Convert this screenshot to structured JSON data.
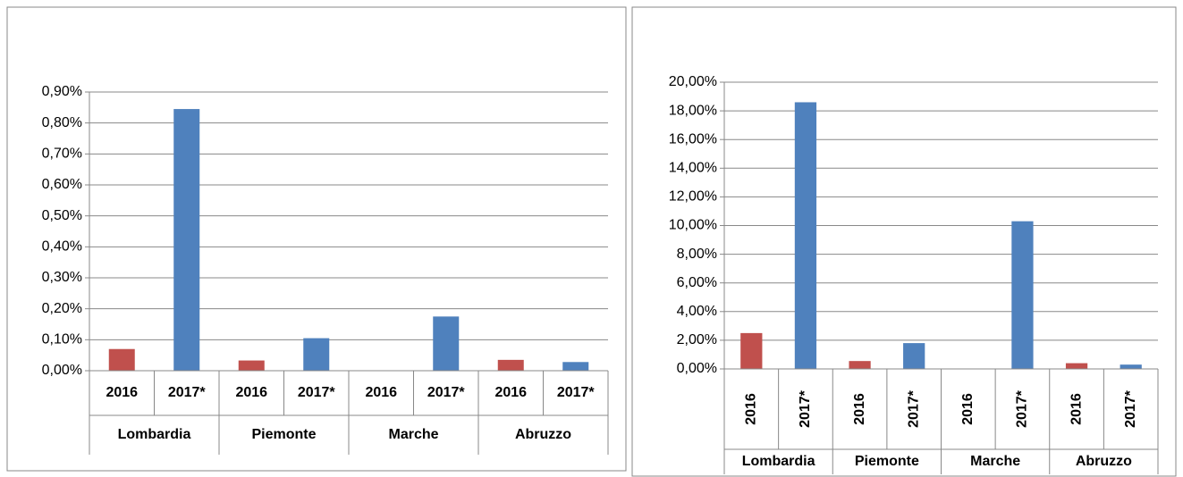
{
  "chart_data": [
    {
      "type": "bar",
      "categories": [
        "Lombardia",
        "Piemonte",
        "Marche",
        "Abruzzo"
      ],
      "series": [
        {
          "name": "2016",
          "color": "#c0504d",
          "values": [
            0.07,
            0.033,
            0,
            0.035
          ]
        },
        {
          "name": "2017*",
          "color": "#4f81bd",
          "values": [
            0.845,
            0.105,
            0.175,
            0.028
          ]
        }
      ],
      "ylim": [
        0,
        0.9
      ],
      "yticks": [
        {
          "value": 0,
          "label": "0,00%"
        },
        {
          "value": 0.1,
          "label": "0,10%"
        },
        {
          "value": 0.2,
          "label": "0,20%"
        },
        {
          "value": 0.3,
          "label": "0,30%"
        },
        {
          "value": 0.4,
          "label": "0,40%"
        },
        {
          "value": 0.5,
          "label": "0,50%"
        },
        {
          "value": 0.6,
          "label": "0,60%"
        },
        {
          "value": 0.7,
          "label": "0,70%"
        },
        {
          "value": 0.8,
          "label": "0,80%"
        },
        {
          "value": 0.9,
          "label": "0,90%"
        }
      ],
      "grid": true
    },
    {
      "type": "bar",
      "categories": [
        "Lombardia",
        "Piemonte",
        "Marche",
        "Abruzzo"
      ],
      "series": [
        {
          "name": "2016",
          "color": "#c0504d",
          "values": [
            2.5,
            0.55,
            0,
            0.4
          ]
        },
        {
          "name": "2017*",
          "color": "#4f81bd",
          "values": [
            18.6,
            1.8,
            10.3,
            0.3
          ]
        }
      ],
      "ylim": [
        0,
        20
      ],
      "yticks": [
        {
          "value": 0,
          "label": "0,00%"
        },
        {
          "value": 2,
          "label": "2,00%"
        },
        {
          "value": 4,
          "label": "4,00%"
        },
        {
          "value": 6,
          "label": "6,00%"
        },
        {
          "value": 8,
          "label": "8,00%"
        },
        {
          "value": 10,
          "label": "10,00%"
        },
        {
          "value": 12,
          "label": "12,00%"
        },
        {
          "value": 14,
          "label": "14,00%"
        },
        {
          "value": 16,
          "label": "16,00%"
        },
        {
          "value": 18,
          "label": "18,00%"
        },
        {
          "value": 20,
          "label": "20,00%"
        }
      ],
      "grid": true
    }
  ]
}
